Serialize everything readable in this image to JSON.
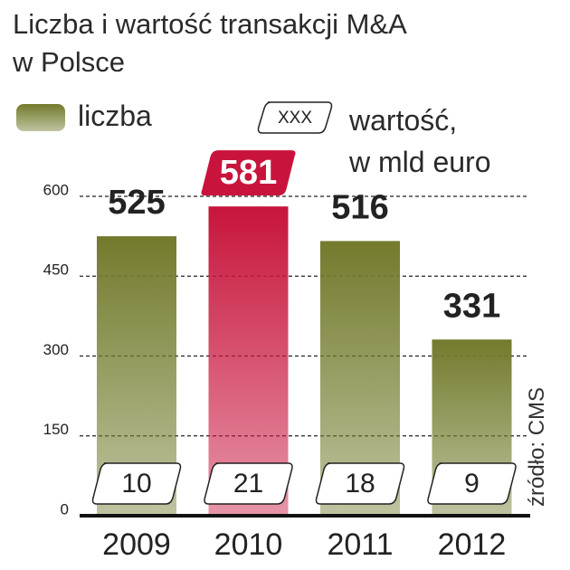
{
  "chart_data": {
    "type": "bar",
    "title": "Liczba i wartość transakcji M&A\nw Polsce",
    "categories": [
      "2009",
      "2010",
      "2011",
      "2012"
    ],
    "series": [
      {
        "name": "liczba",
        "color": "#737a2c",
        "colors": [
          "#737a2c",
          "#c8143c",
          "#737a2c",
          "#737a2c"
        ],
        "values": [
          525,
          581,
          516,
          331
        ]
      },
      {
        "name": "wartość,\nw mld euro",
        "symbol": "XXX",
        "values": [
          10,
          21,
          18,
          9
        ]
      }
    ],
    "ylim": [
      0,
      600
    ],
    "yticks": [
      0,
      150,
      300,
      450,
      600
    ],
    "grid": true,
    "source": "źródło: CMS"
  }
}
